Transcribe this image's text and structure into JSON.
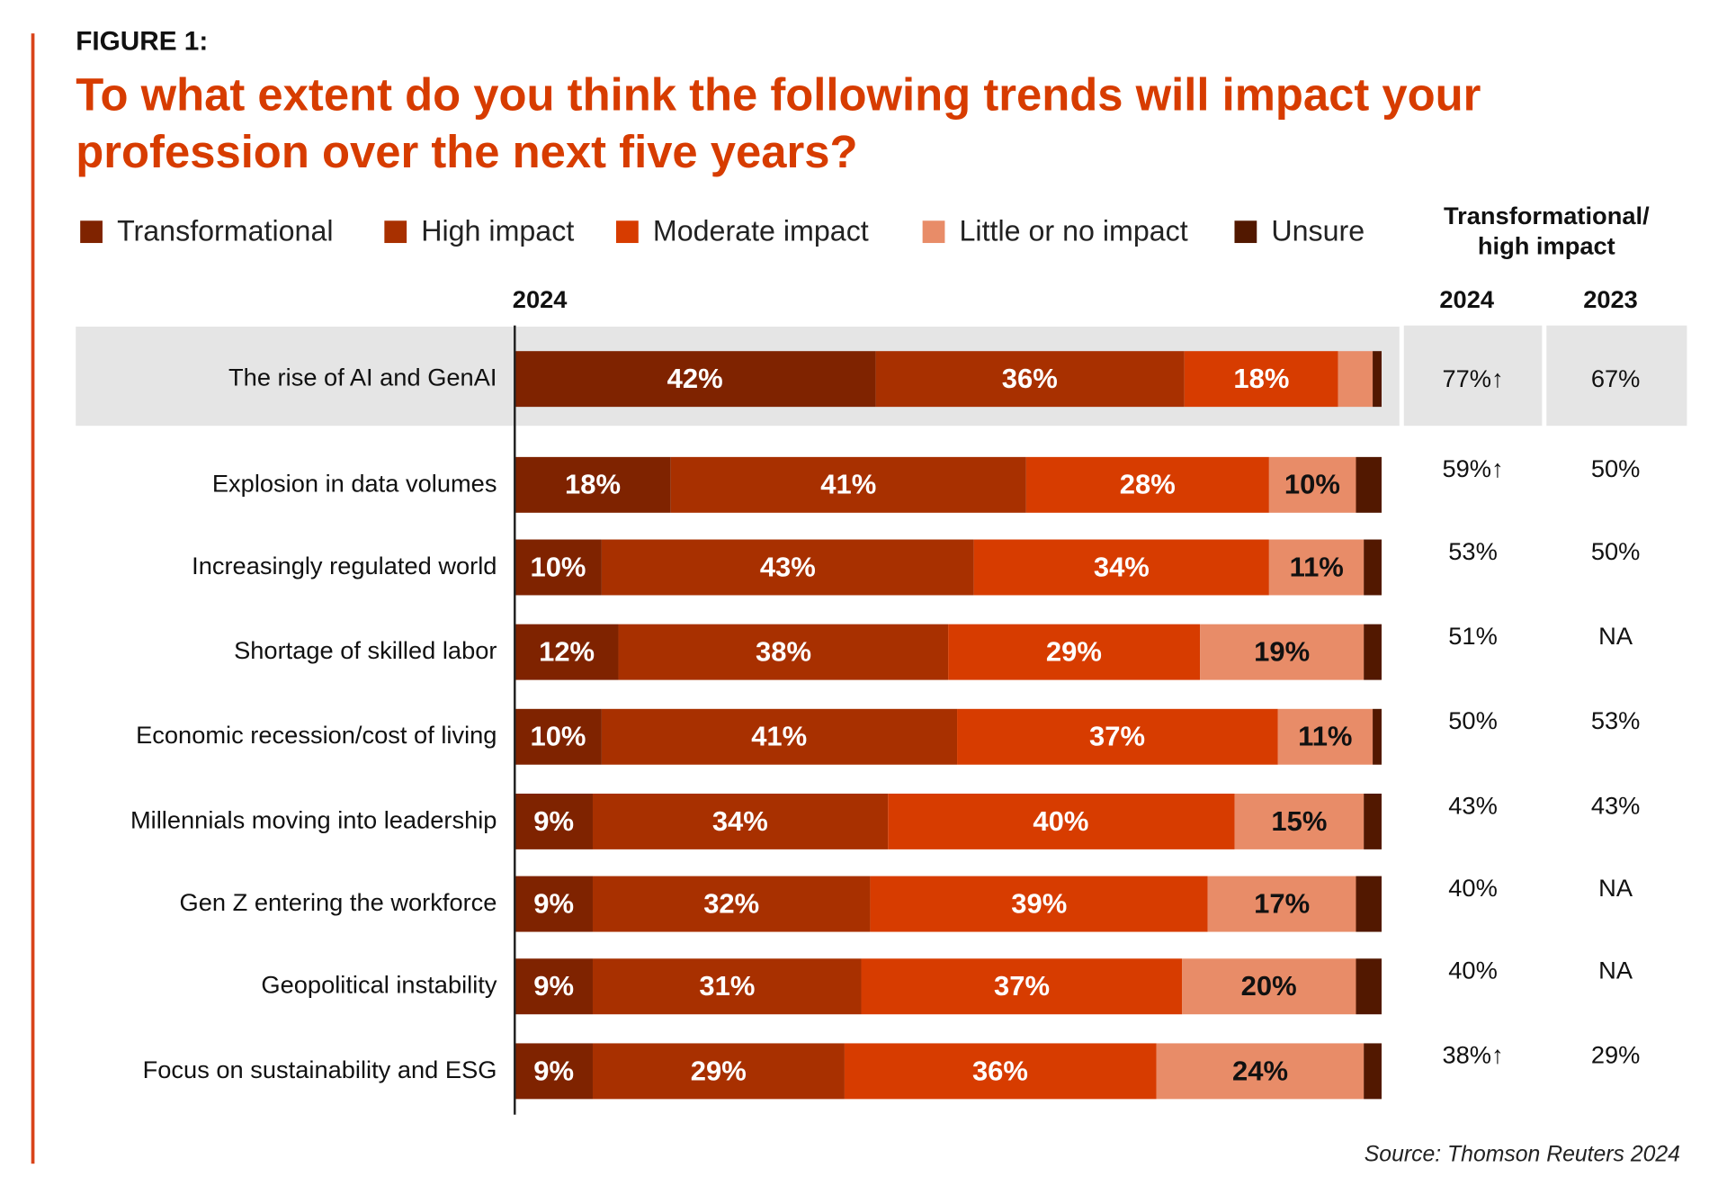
{
  "figure_label": "FIGURE 1:",
  "chart_data": {
    "type": "bar",
    "orientation": "horizontal",
    "stacked": true,
    "title": "To what extent do you think the following trends will impact your profession over the next five years?",
    "bar_header": "2024",
    "categories": [
      "The rise of AI and GenAI",
      "Explosion in data volumes",
      "Increasingly regulated world",
      "Shortage of skilled labor",
      "Economic recession/cost of living",
      "Millennials moving into leadership",
      "Gen Z entering the workforce",
      "Geopolitical instability",
      "Focus on sustainability and ESG"
    ],
    "highlighted_category": "The rise of AI and GenAI",
    "series": [
      {
        "name": "Transformational",
        "color": "#7f2300",
        "values": [
          42,
          18,
          10,
          12,
          10,
          9,
          9,
          9,
          9
        ],
        "labeled": true
      },
      {
        "name": "High impact",
        "color": "#a83000",
        "values": [
          36,
          41,
          43,
          38,
          41,
          34,
          32,
          31,
          29
        ],
        "labeled": true
      },
      {
        "name": "Moderate impact",
        "color": "#d73c00",
        "values": [
          18,
          28,
          34,
          29,
          37,
          40,
          39,
          37,
          36
        ],
        "labeled": true
      },
      {
        "name": "Little or no impact",
        "color": "#e88c68",
        "values": [
          4,
          10,
          11,
          19,
          11,
          15,
          17,
          20,
          24
        ],
        "labeled": [
          false,
          true,
          true,
          true,
          true,
          true,
          true,
          true,
          true
        ]
      },
      {
        "name": "Unsure",
        "color": "#521800",
        "values": [
          1,
          3,
          2,
          2,
          1,
          2,
          3,
          3,
          2
        ],
        "labeled": false
      }
    ],
    "legend_placement": "top",
    "unit": "%",
    "side_table": {
      "header": "Transformational/ high impact",
      "columns": [
        "2024",
        "2023"
      ],
      "rows": [
        [
          "77%↑",
          "67%"
        ],
        [
          "59%↑",
          "50%"
        ],
        [
          "53%",
          "50%"
        ],
        [
          "51%",
          "NA"
        ],
        [
          "50%",
          "53%"
        ],
        [
          "43%",
          "43%"
        ],
        [
          "40%",
          "NA"
        ],
        [
          "40%",
          "NA"
        ],
        [
          "38%↑",
          "29%"
        ]
      ]
    }
  },
  "source": "Source: Thomson Reuters 2024"
}
